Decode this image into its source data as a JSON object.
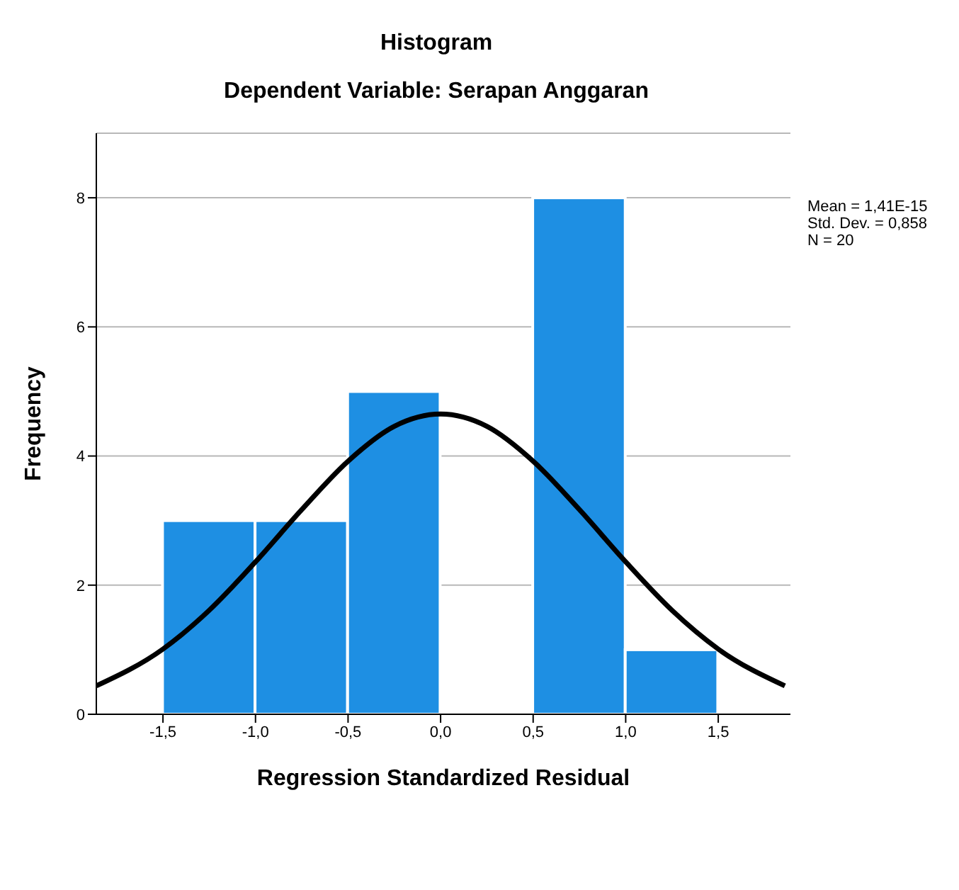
{
  "chart_data": {
    "type": "histogram",
    "title": "Histogram",
    "subtitle": "Dependent Variable: Serapan Anggaran",
    "xlabel": "Regression Standardized Residual",
    "ylabel": "Frequency",
    "annotations": [
      "Mean = 1,41E-15",
      "Std. Dev. = 0,858",
      "N = 20"
    ],
    "bins": [
      -1.5,
      -1.0,
      -0.5,
      0,
      0.5,
      1.0,
      1.5
    ],
    "series": [
      {
        "color": "#1e8fe3",
        "values": [
          3,
          3,
          5,
          0,
          8,
          1
        ]
      },
      {
        "type": "line",
        "color": "#000000",
        "x": [
          -1.86,
          -1.5,
          -1.25,
          -1.0,
          -0.75,
          -0.5,
          -0.25,
          0,
          0.25,
          0.5,
          0.75,
          1.0,
          1.25,
          1.5,
          1.86
        ],
        "values": [
          0.44,
          1.01,
          1.61,
          2.36,
          3.17,
          3.92,
          4.46,
          4.65,
          4.46,
          3.92,
          3.17,
          2.36,
          1.61,
          1.01,
          0.44
        ]
      }
    ],
    "xlim": [
      -1.86,
      1.89
    ],
    "xticks": [
      {
        "value": -1.5,
        "label": "-1,5"
      },
      {
        "value": -1.0,
        "label": "-1,0"
      },
      {
        "value": -0.5,
        "label": "-0,5"
      },
      {
        "value": 0,
        "label": "0,0"
      },
      {
        "value": 0.5,
        "label": "0,5"
      },
      {
        "value": 1.0,
        "label": "1,0"
      },
      {
        "value": 1.5,
        "label": "1,5"
      }
    ],
    "ylim": [
      0,
      9
    ],
    "yticks": [
      0,
      2,
      4,
      6,
      8
    ],
    "grid": "y",
    "line_style": "solid"
  }
}
